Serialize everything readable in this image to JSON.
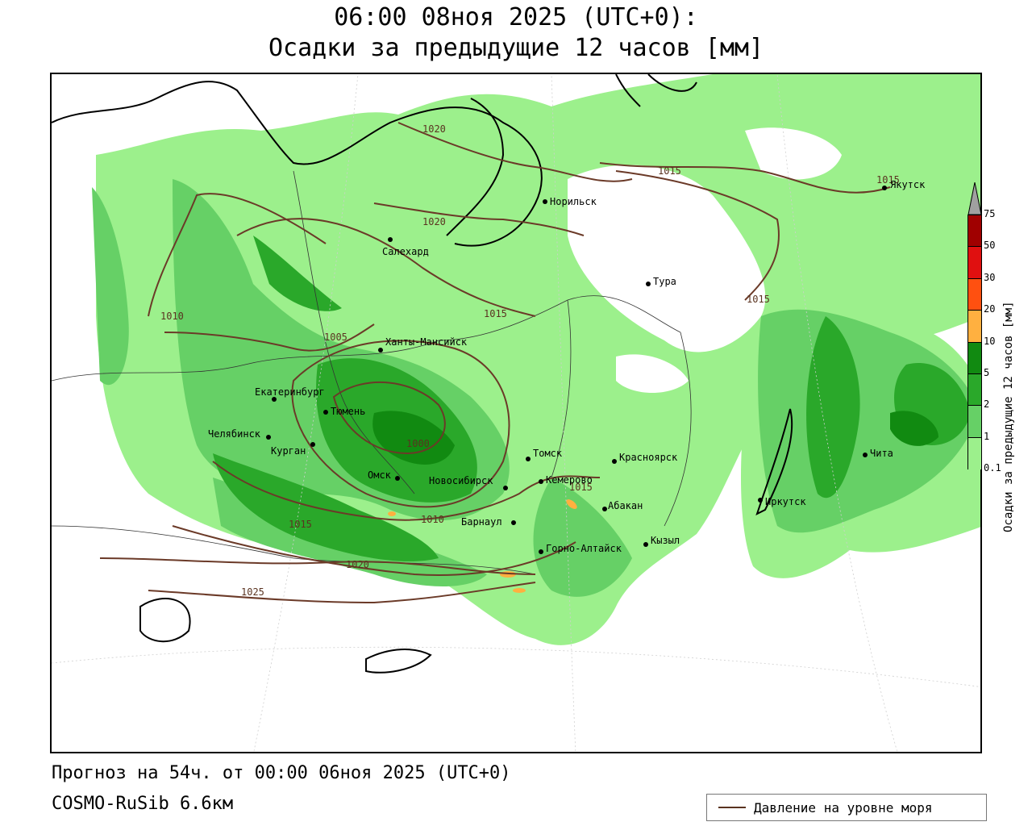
{
  "header": {
    "line1": "06:00 08ноя 2025 (UTC+0):",
    "line2": "Осадки за предыдущие 12 часов [мм]"
  },
  "footer": {
    "forecast": "Прогноз на 54ч. от 00:00 06ноя 2025 (UTC+0)",
    "model": "COSMO-RuSib 6.6км"
  },
  "legend": {
    "isobar_label": "Давление на уровне моря"
  },
  "colorbar": {
    "title": "Осадки за предыдущие 12 часов [мм]",
    "ticks": [
      "75",
      "50",
      "30",
      "20",
      "10",
      "5",
      "2",
      "1",
      "0.1"
    ],
    "colors": [
      "#a0a0a0",
      "#a00000",
      "#e01010",
      "#ff5010",
      "#ffb040",
      "#118a11",
      "#2aa82a",
      "#66d066",
      "#9cf08c"
    ]
  },
  "cities": [
    {
      "name": "Салехард"
    },
    {
      "name": "Норильск"
    },
    {
      "name": "Тура"
    },
    {
      "name": "Якутск",
      "shown": "Якутск"
    },
    {
      "name": "Ханты-Мансийск"
    },
    {
      "name": "Екатеринбург"
    },
    {
      "name": "Тюмень"
    },
    {
      "name": "Челябинск"
    },
    {
      "name": "Курган"
    },
    {
      "name": "Омск"
    },
    {
      "name": "Новосибирск"
    },
    {
      "name": "Томск"
    },
    {
      "name": "Кемерово"
    },
    {
      "name": "Красноярск"
    },
    {
      "name": "Барнаул"
    },
    {
      "name": "Абакан"
    },
    {
      "name": "Горно-Алтайск"
    },
    {
      "name": "Кызыл"
    },
    {
      "name": "Иркутск"
    },
    {
      "name": "Чита"
    }
  ],
  "isobars": [
    "1020",
    "1020",
    "1015",
    "1015",
    "1015",
    "1010",
    "1015",
    "1005",
    "1000",
    "1010",
    "1015",
    "1015",
    "1020",
    "1025"
  ]
}
